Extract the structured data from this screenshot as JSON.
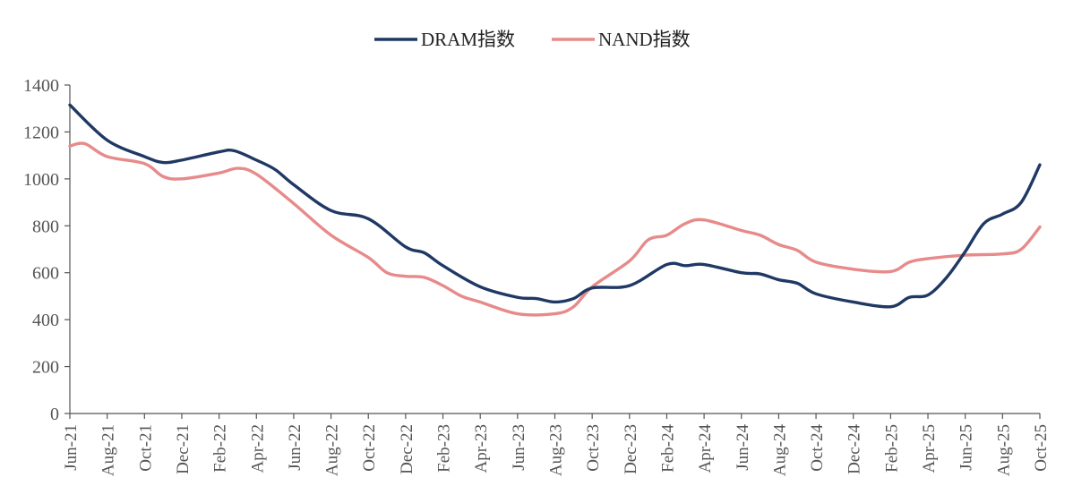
{
  "chart_data": {
    "type": "line",
    "title": "",
    "xlabel": "",
    "ylabel": "",
    "ylim": [
      0,
      1400
    ],
    "yticks": [
      0,
      200,
      400,
      600,
      800,
      1000,
      1200,
      1400
    ],
    "grid": false,
    "legend_position": "top-center",
    "categories": [
      "Jun-21",
      "Aug-21",
      "Oct-21",
      "Dec-21",
      "Feb-22",
      "Apr-22",
      "Jun-22",
      "Aug-22",
      "Oct-22",
      "Dec-22",
      "Feb-23",
      "Apr-23",
      "Jun-23",
      "Aug-23",
      "Oct-23",
      "Dec-23",
      "Feb-24",
      "Apr-24",
      "Jun-24",
      "Aug-24",
      "Oct-24",
      "Dec-24",
      "Feb-25",
      "Apr-25",
      "Jun-25",
      "Aug-25",
      "Oct-25"
    ],
    "series": [
      {
        "name": "DRAM指数",
        "color": "#1f3864",
        "points": [
          [
            0,
            1315
          ],
          [
            1,
            1165
          ],
          [
            2,
            1095
          ],
          [
            2.5,
            1070
          ],
          [
            3,
            1080
          ],
          [
            4,
            1115
          ],
          [
            4.4,
            1120
          ],
          [
            5,
            1080
          ],
          [
            5.5,
            1040
          ],
          [
            6,
            975
          ],
          [
            7,
            865
          ],
          [
            8,
            830
          ],
          [
            9,
            710
          ],
          [
            9.5,
            685
          ],
          [
            10,
            630
          ],
          [
            11,
            540
          ],
          [
            12,
            495
          ],
          [
            12.5,
            490
          ],
          [
            13,
            475
          ],
          [
            13.5,
            490
          ],
          [
            14,
            535
          ],
          [
            15,
            545
          ],
          [
            16,
            635
          ],
          [
            16.5,
            630
          ],
          [
            17,
            635
          ],
          [
            18,
            600
          ],
          [
            18.5,
            595
          ],
          [
            19,
            570
          ],
          [
            19.5,
            555
          ],
          [
            20,
            510
          ],
          [
            21,
            475
          ],
          [
            22,
            455
          ],
          [
            22.5,
            495
          ],
          [
            23,
            505
          ],
          [
            23.5,
            580
          ],
          [
            24,
            690
          ],
          [
            24.5,
            810
          ],
          [
            25,
            850
          ],
          [
            25.5,
            900
          ],
          [
            26,
            1060
          ]
        ]
      },
      {
        "name": "NAND指数",
        "color": "#e78a8a",
        "points": [
          [
            0,
            1140
          ],
          [
            0.4,
            1150
          ],
          [
            1,
            1095
          ],
          [
            2,
            1065
          ],
          [
            2.5,
            1010
          ],
          [
            3,
            1000
          ],
          [
            4,
            1025
          ],
          [
            4.5,
            1045
          ],
          [
            5,
            1020
          ],
          [
            6,
            895
          ],
          [
            7,
            760
          ],
          [
            8,
            665
          ],
          [
            8.5,
            600
          ],
          [
            9,
            585
          ],
          [
            9.5,
            580
          ],
          [
            10,
            545
          ],
          [
            10.5,
            500
          ],
          [
            11,
            475
          ],
          [
            12,
            425
          ],
          [
            13,
            425
          ],
          [
            13.5,
            455
          ],
          [
            14,
            540
          ],
          [
            15,
            650
          ],
          [
            15.5,
            740
          ],
          [
            16,
            760
          ],
          [
            16.5,
            810
          ],
          [
            17,
            825
          ],
          [
            18,
            780
          ],
          [
            18.5,
            760
          ],
          [
            19,
            720
          ],
          [
            19.5,
            695
          ],
          [
            20,
            645
          ],
          [
            21,
            615
          ],
          [
            22,
            605
          ],
          [
            22.5,
            645
          ],
          [
            23,
            660
          ],
          [
            24,
            675
          ],
          [
            25,
            680
          ],
          [
            25.5,
            700
          ],
          [
            26,
            795
          ]
        ]
      }
    ]
  }
}
